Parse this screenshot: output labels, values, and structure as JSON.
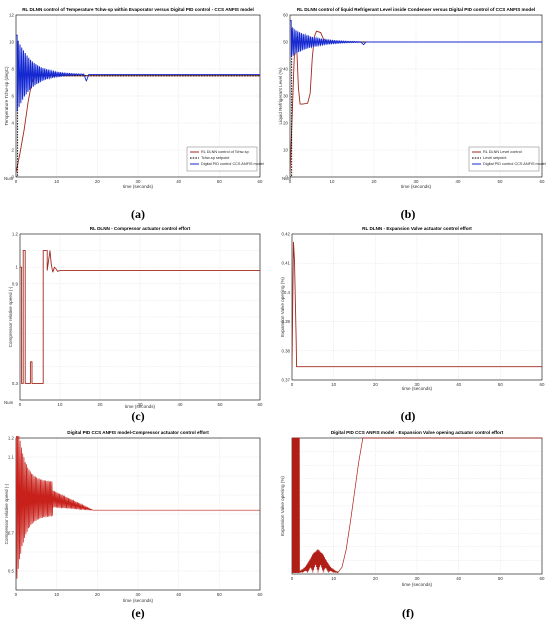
{
  "chart_data": [
    {
      "id": "a",
      "type": "line",
      "caption": "(a)",
      "title": "RL DLNN control of Temperature Tchw-sp within Evaporator versus Digital PID control - CCS ANFIS model",
      "xlabel": "time (seconds)",
      "ylabel": "Temperature Tchw-sp (degC)",
      "xlim": [
        0,
        60
      ],
      "ylim": [
        0,
        12
      ],
      "xticks": [
        "0",
        "10",
        "20",
        "30",
        "40",
        "50",
        "60"
      ],
      "yticks": [
        "0",
        "2",
        "4",
        "6",
        "8",
        "10",
        "12"
      ],
      "corner_label": "Num",
      "grid": true,
      "legend_position": "right",
      "series": [
        {
          "name": "RL DLNN control of Tchw-sp",
          "color": "#a0281e",
          "kind": "ramp",
          "points": [
            [
              0,
              0.3
            ],
            [
              1,
              1.8
            ],
            [
              2,
              3.5
            ],
            [
              3,
              5.6
            ],
            [
              4,
              7.2
            ],
            [
              5,
              7.5
            ],
            [
              10,
              7.5
            ],
            [
              60,
              7.5
            ]
          ]
        },
        {
          "name": "Tchw-sp setpoint",
          "color": "#000000",
          "dash": true,
          "kind": "step",
          "points": [
            [
              0,
              0
            ],
            [
              0.4,
              0
            ],
            [
              0.4,
              7.5
            ],
            [
              60,
              7.5
            ]
          ]
        },
        {
          "name": "Digital PID control CCS ANFIS model",
          "color": "#1428d2",
          "kind": "osc",
          "final": 7.6,
          "start": 10.5,
          "amp": 3.0,
          "decay": 0.28,
          "freq": 2.3,
          "settle": 17,
          "dip": [
            17.3,
            7.1
          ]
        }
      ]
    },
    {
      "id": "b",
      "type": "line",
      "caption": "(b)",
      "title": "RL DLNN control of liquid Refrigerant Level inside Condenser versus Digital PID control of CCS ANFIS model",
      "xlabel": "time (seconds)",
      "ylabel": "Liquid Refrigerant Level (%)",
      "xlim": [
        0,
        60
      ],
      "ylim": [
        0,
        60
      ],
      "xticks": [
        "0",
        "10",
        "20",
        "30",
        "40",
        "50",
        "60"
      ],
      "yticks": [
        "0",
        "10",
        "20",
        "30",
        "40",
        "50",
        "60"
      ],
      "corner_label": "Num",
      "grid": true,
      "legend_position": "right",
      "series": [
        {
          "name": "RL DLNN Level control",
          "color": "#a0281e",
          "kind": "path",
          "points": [
            [
              0,
              1
            ],
            [
              0.5,
              22
            ],
            [
              1,
              44
            ],
            [
              1.5,
              52
            ],
            [
              2,
              33
            ],
            [
              2.4,
              27
            ],
            [
              3,
              27
            ],
            [
              4.2,
              27.3
            ],
            [
              4.8,
              31
            ],
            [
              5.3,
              44
            ],
            [
              5.8,
              52
            ],
            [
              6.3,
              54
            ],
            [
              7.3,
              53.5
            ],
            [
              8,
              51
            ],
            [
              9,
              50
            ],
            [
              10,
              50
            ],
            [
              60,
              50
            ]
          ]
        },
        {
          "name": "Level setpoint",
          "color": "#000000",
          "dash": true,
          "kind": "step",
          "points": [
            [
              0,
              0
            ],
            [
              0.4,
              0
            ],
            [
              0.4,
              50
            ],
            [
              60,
              50
            ]
          ]
        },
        {
          "name": "Digital PID control CCS ANFIS model",
          "color": "#1428d2",
          "kind": "osc",
          "final": 50,
          "start": 58,
          "amp": 6,
          "decay": 0.22,
          "freq": 2.3,
          "settle": 18,
          "dip": [
            17.5,
            49
          ]
        }
      ]
    },
    {
      "id": "c",
      "type": "line",
      "caption": "(c)",
      "title": "RL DLNN - Compressor actuator control effort",
      "xlabel": "time (seconds)",
      "ylabel": "Compressor relative speed (-)",
      "xlim": [
        0,
        60
      ],
      "ylim": [
        0.2,
        1.2
      ],
      "xticks": [
        "0",
        "10",
        "20",
        "30",
        "40",
        "50",
        "60"
      ],
      "yticks": [
        "",
        "0.3",
        "",
        "",
        "",
        "",
        "",
        "0.9",
        "1",
        "",
        "1.2"
      ],
      "corner_label": "Num",
      "grid": true,
      "series": [
        {
          "name": "",
          "color": "#a0281e",
          "kind": "path",
          "points": [
            [
              0,
              1.0
            ],
            [
              0.4,
              1.0
            ],
            [
              0.4,
              0.3
            ],
            [
              0.8,
              0.3
            ],
            [
              0.8,
              1.1
            ],
            [
              1.3,
              1.1
            ],
            [
              1.3,
              0.3
            ],
            [
              2.6,
              0.3
            ],
            [
              2.6,
              0.43
            ],
            [
              3.0,
              0.43
            ],
            [
              3.0,
              0.3
            ],
            [
              5.8,
              0.3
            ],
            [
              5.8,
              1.1
            ],
            [
              6.8,
              1.1
            ],
            [
              6.8,
              0.98
            ],
            [
              7.2,
              1.05
            ],
            [
              7.5,
              1.1
            ],
            [
              7.8,
              1.02
            ],
            [
              8.2,
              0.97
            ],
            [
              8.6,
              1.0
            ],
            [
              9.0,
              0.99
            ],
            [
              9.4,
              0.975
            ],
            [
              10,
              0.98
            ],
            [
              60,
              0.98
            ]
          ]
        }
      ]
    },
    {
      "id": "d",
      "type": "line",
      "caption": "(d)",
      "title": "RL DLNN - Expansion Valve actuator control effort",
      "xlabel": "time (seconds)",
      "ylabel": "Expansion Valve opening (%)",
      "xlim": [
        0,
        60
      ],
      "ylim": [
        0.365,
        0.42
      ],
      "xticks": [
        "0",
        "10",
        "20",
        "30",
        "40",
        "50",
        "60"
      ],
      "yticks": [
        "0.37",
        "0.38",
        "0.39",
        "0.4",
        "0.41",
        "0.42"
      ],
      "grid": true,
      "series": [
        {
          "name": "",
          "color": "#a0281e",
          "kind": "path",
          "points": [
            [
              0,
              0.37
            ],
            [
              0.35,
              0.417
            ],
            [
              0.6,
              0.41
            ],
            [
              0.8,
              0.395
            ],
            [
              1.0,
              0.38
            ],
            [
              1.1,
              0.37
            ],
            [
              60,
              0.37
            ]
          ]
        }
      ]
    },
    {
      "id": "e",
      "type": "line",
      "caption": "(e)",
      "title": "Digital PID CCS ANFIS model-Compressor actuator control effort",
      "xlabel": "time (seconds)",
      "ylabel": "Compressor relative speed (-)",
      "xlim": [
        0,
        60
      ],
      "ylim": [
        0.4,
        1.2
      ],
      "xticks": [
        "0",
        "10",
        "20",
        "30",
        "40",
        "50",
        "60"
      ],
      "yticks": [
        "",
        "0.5",
        "",
        "0.7",
        "",
        "",
        "",
        "1.1",
        "1.2"
      ],
      "grid": true,
      "series": [
        {
          "name": "",
          "color": "#c8201a",
          "kind": "oscfill",
          "final": 0.82,
          "center": 0.88,
          "amp0": 0.38,
          "ampHold": 0.09,
          "hold": 9,
          "freq": 3.2,
          "settle": 19
        }
      ]
    },
    {
      "id": "f",
      "type": "line",
      "caption": "(f)",
      "title": "Digital PID CCS ANFIS model - Expansion Valve opening actuator control effort",
      "xlabel": "time (seconds)",
      "ylabel": "Expansion Valve opening (%)",
      "xlim": [
        0,
        60
      ],
      "ylim": [
        0,
        1
      ],
      "xticks": [
        "0",
        "10",
        "20",
        "30",
        "40",
        "50",
        "60"
      ],
      "yticks": [
        "",
        "",
        "",
        "",
        "",
        "",
        "",
        "",
        "",
        "",
        ""
      ],
      "grid": true,
      "series": [
        {
          "name": "",
          "color": "#b01e16",
          "kind": "valve",
          "points": [
            [
              11,
              0.01
            ],
            [
              12,
              0.05
            ],
            [
              13,
              0.18
            ],
            [
              14,
              0.38
            ],
            [
              15,
              0.6
            ],
            [
              16,
              0.82
            ],
            [
              17,
              1.0
            ],
            [
              60,
              1.0
            ]
          ]
        }
      ]
    }
  ]
}
